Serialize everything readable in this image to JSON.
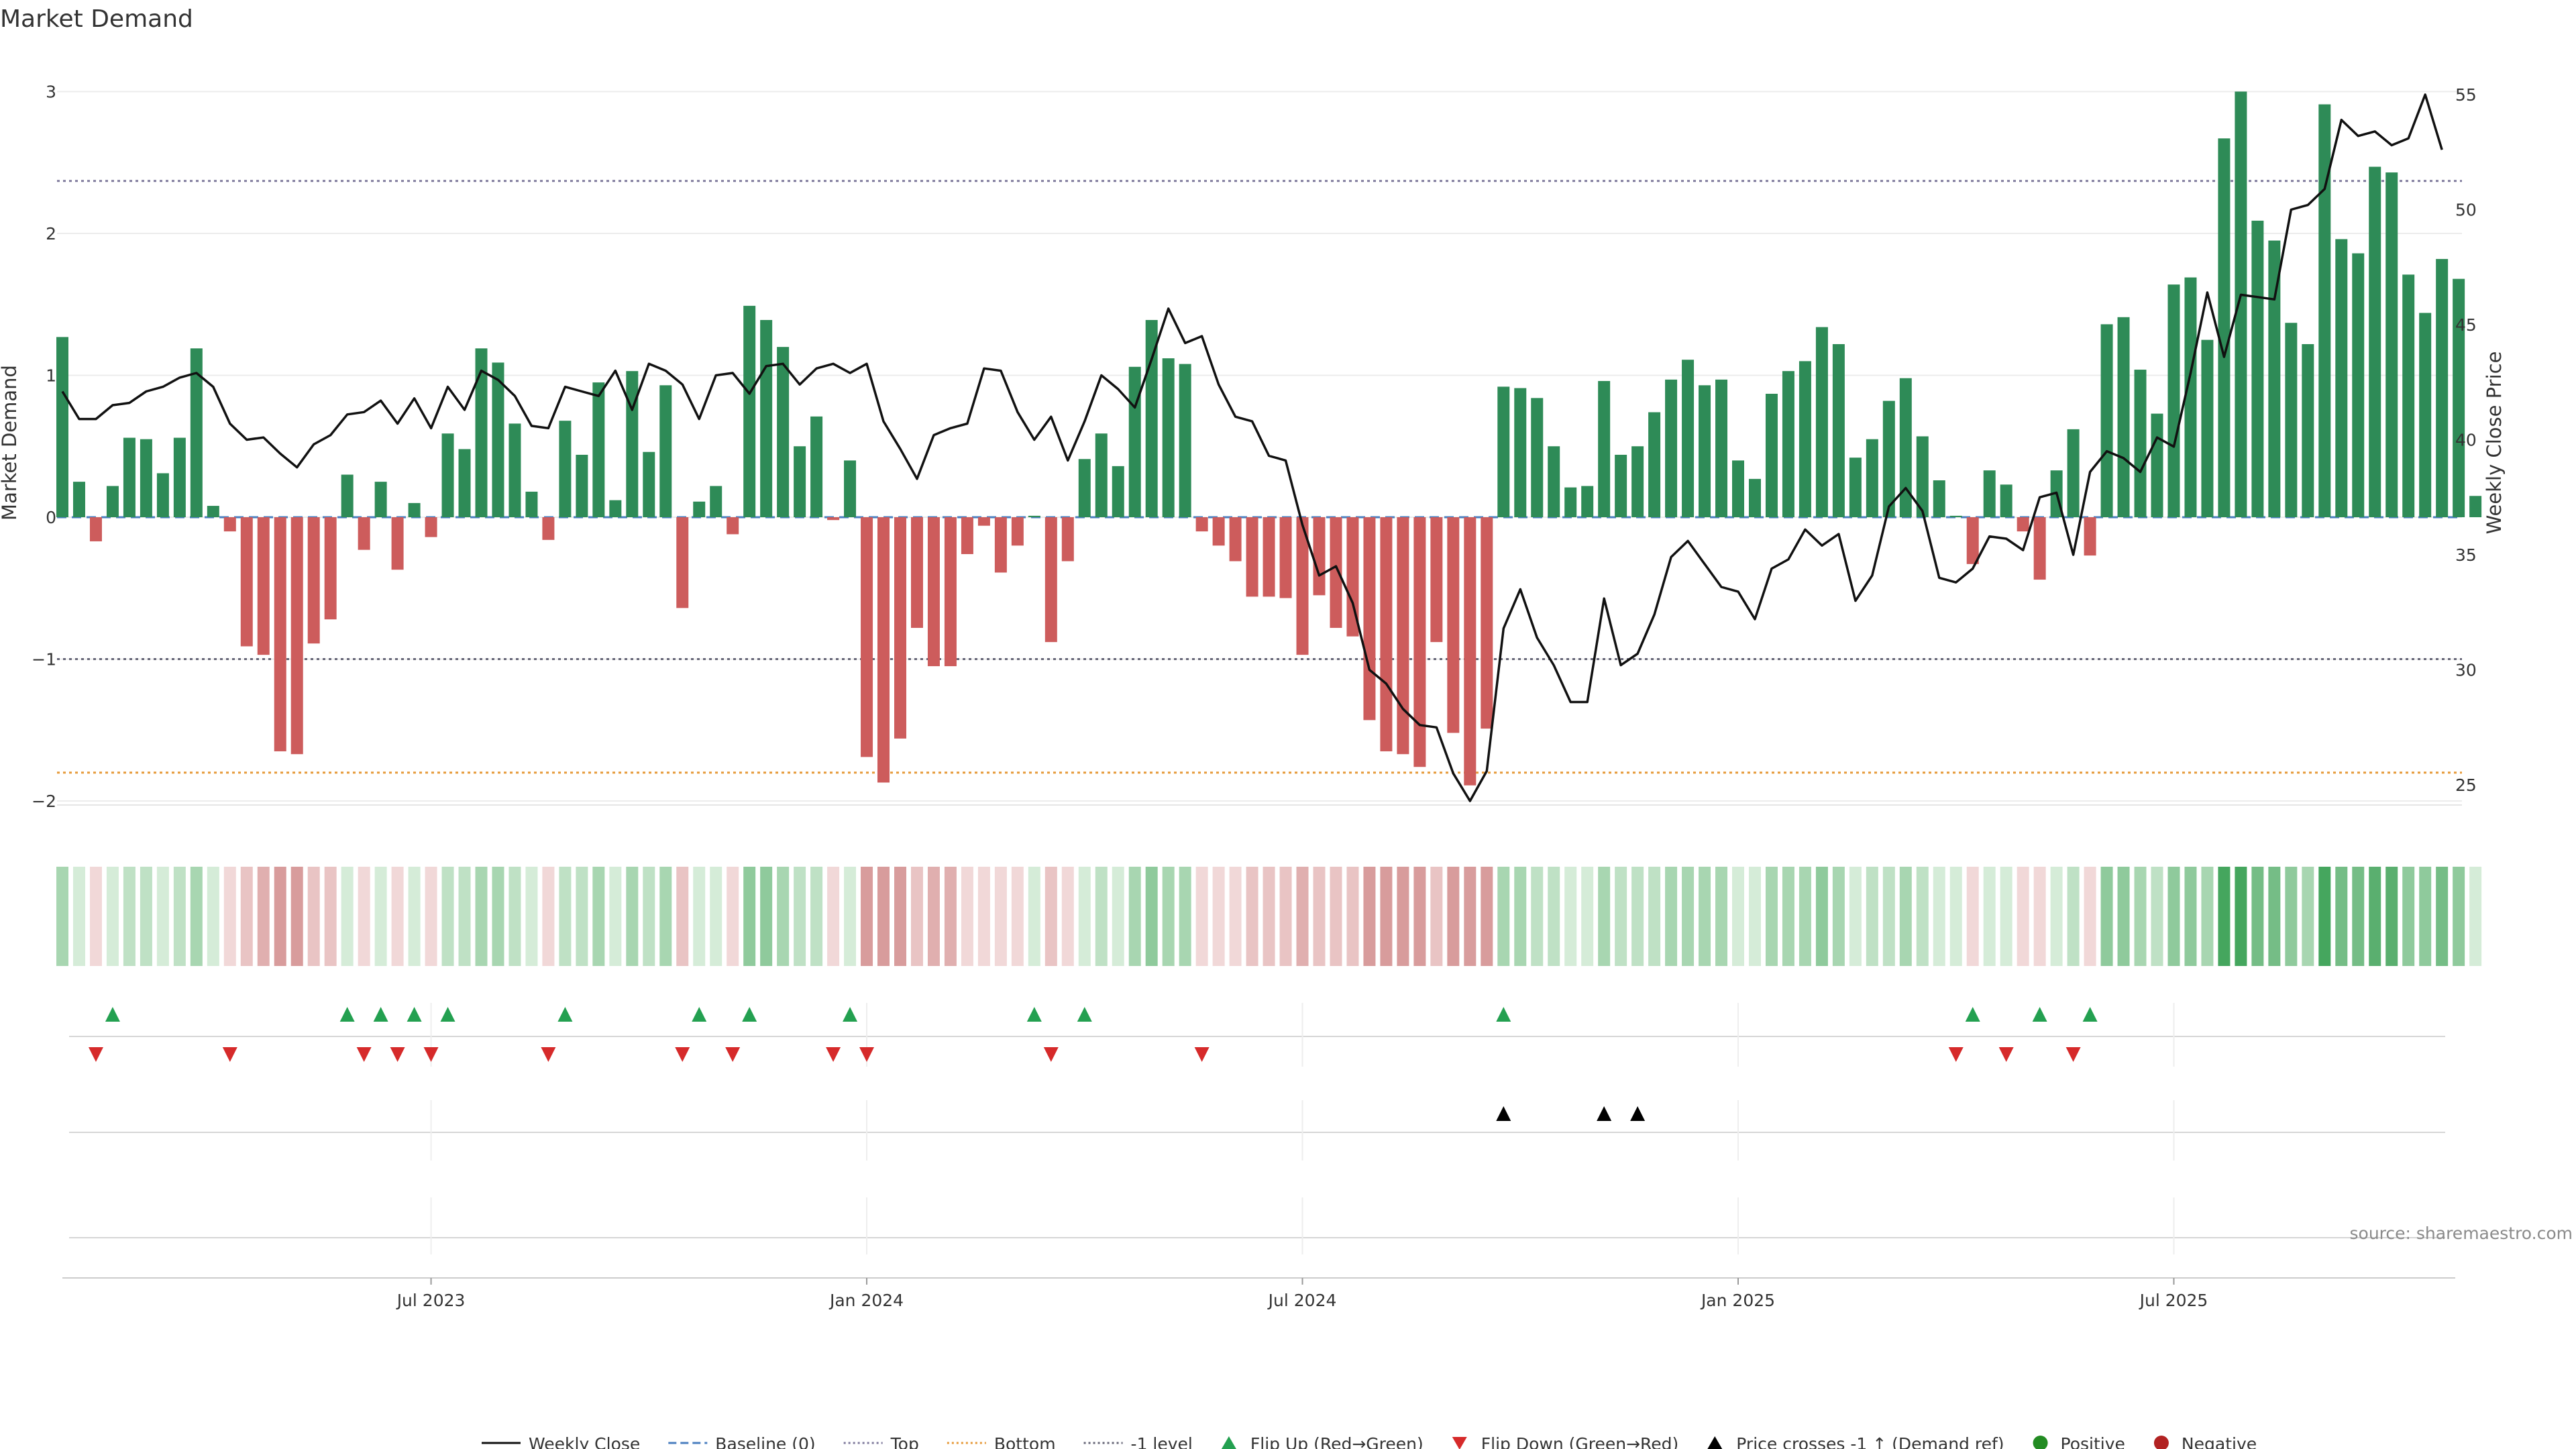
{
  "chart_data": {
    "type": "bar",
    "title": "Market Demand",
    "ylabel_left": "Market Demand",
    "ylabel_right": "Weekly Close Price",
    "source": "source: sharemaestro.com",
    "ylim_left": [
      -2.2,
      3.1
    ],
    "ylim_right": [
      23.5,
      56.5
    ],
    "left_ticks": [
      {
        "v": 3,
        "t": "3"
      },
      {
        "v": 2,
        "t": "2"
      },
      {
        "v": 1,
        "t": "1"
      },
      {
        "v": 0,
        "t": "0"
      },
      {
        "v": -1,
        "t": "−1"
      },
      {
        "v": -2,
        "t": "−2"
      }
    ],
    "right_ticks": [
      {
        "v": 55,
        "t": "55"
      },
      {
        "v": 50,
        "t": "50"
      },
      {
        "v": 45,
        "t": "45"
      },
      {
        "v": 40,
        "t": "40"
      },
      {
        "v": 35,
        "t": "35"
      },
      {
        "v": 30,
        "t": "30"
      },
      {
        "v": 25,
        "t": "25"
      }
    ],
    "x_ticks": [
      {
        "i": 22,
        "t": "Jul 2023"
      },
      {
        "i": 48,
        "t": "Jan 2024"
      },
      {
        "i": 74,
        "t": "Jul 2024"
      },
      {
        "i": 100,
        "t": "Jan 2025"
      },
      {
        "i": 126,
        "t": "Jul 2025"
      }
    ],
    "reference_lines": {
      "top": 2.37,
      "bottom": -1.8,
      "minus_one": -1,
      "baseline": 0
    },
    "demand": [
      1.27,
      0.25,
      -0.17,
      0.22,
      0.56,
      0.55,
      0.31,
      0.56,
      1.19,
      0.08,
      -0.1,
      -0.91,
      -0.97,
      -1.65,
      -1.67,
      -0.89,
      -0.72,
      0.3,
      -0.23,
      0.25,
      -0.37,
      0.1,
      -0.14,
      0.59,
      0.48,
      1.19,
      1.09,
      0.66,
      0.18,
      -0.16,
      0.68,
      0.44,
      0.95,
      0.12,
      1.03,
      0.46,
      0.93,
      -0.64,
      0.11,
      0.22,
      -0.12,
      1.49,
      1.39,
      1.2,
      0.5,
      0.71,
      -0.02,
      0.4,
      -1.69,
      -1.87,
      -1.56,
      -0.78,
      -1.05,
      -1.05,
      -0.26,
      -0.06,
      -0.39,
      -0.2,
      0.01,
      -0.88,
      -0.31,
      0.41,
      0.59,
      0.36,
      1.06,
      1.39,
      1.12,
      1.08,
      -0.1,
      -0.2,
      -0.31,
      -0.56,
      -0.56,
      -0.57,
      -0.97,
      -0.55,
      -0.78,
      -0.84,
      -1.43,
      -1.65,
      -1.67,
      -1.76,
      -0.88,
      -1.52,
      -1.89,
      -1.49,
      0.92,
      0.91,
      0.84,
      0.5,
      0.21,
      0.22,
      0.96,
      0.44,
      0.5,
      0.74,
      0.97,
      1.11,
      0.93,
      0.97,
      0.4,
      0.27,
      0.87,
      1.03,
      1.1,
      1.34,
      1.22,
      0.42,
      0.55,
      0.82,
      0.98,
      0.57,
      0.26,
      0.01,
      -0.33,
      0.33,
      0.23,
      -0.1,
      -0.44,
      0.33,
      0.62,
      -0.27,
      1.36,
      1.41,
      1.04,
      0.73,
      1.64,
      1.69,
      1.25,
      2.67,
      3.0,
      2.09,
      1.95,
      1.37,
      1.22,
      2.91,
      1.96,
      1.86,
      2.47,
      2.43,
      1.71,
      1.44,
      1.82,
      1.68,
      0.15
    ],
    "weekly_close": [
      42.1,
      40.9,
      40.9,
      41.5,
      41.6,
      42.1,
      42.3,
      42.7,
      42.9,
      42.3,
      40.7,
      40.0,
      40.1,
      39.4,
      38.8,
      39.8,
      40.2,
      41.1,
      41.2,
      41.7,
      40.7,
      41.8,
      40.5,
      42.3,
      41.3,
      43.0,
      42.6,
      41.9,
      40.6,
      40.5,
      42.3,
      42.1,
      41.9,
      43.0,
      41.3,
      43.3,
      43.0,
      42.4,
      40.9,
      42.8,
      42.9,
      42.0,
      43.2,
      43.3,
      42.4,
      43.1,
      43.3,
      42.9,
      43.3,
      40.8,
      39.6,
      38.3,
      40.2,
      40.5,
      40.7,
      43.1,
      43.0,
      41.2,
      40.0,
      41.0,
      39.1,
      40.8,
      42.8,
      42.2,
      41.4,
      43.5,
      45.7,
      44.2,
      44.5,
      42.4,
      41.0,
      40.8,
      39.3,
      39.1,
      36.3,
      34.1,
      34.5,
      32.9,
      30.0,
      29.4,
      28.3,
      27.6,
      27.5,
      25.5,
      24.3,
      25.6,
      31.8,
      33.5,
      31.4,
      30.2,
      28.6,
      28.6,
      33.1,
      30.2,
      30.7,
      32.4,
      34.9,
      35.6,
      34.6,
      33.6,
      33.4,
      32.2,
      34.4,
      34.8,
      36.1,
      35.4,
      35.9,
      33.0,
      34.1,
      37.1,
      37.9,
      36.9,
      34.0,
      33.8,
      34.4,
      35.8,
      35.7,
      35.2,
      37.5,
      37.7,
      35.0,
      38.6,
      39.5,
      39.2,
      38.6,
      40.1,
      39.7,
      42.9,
      46.4,
      43.6,
      46.3,
      46.2,
      46.1,
      50.0,
      50.2,
      50.9,
      53.9,
      53.2,
      53.4,
      52.8,
      53.1,
      55.0,
      52.6
    ],
    "flip_up_idx": [
      3,
      17,
      19,
      21,
      23,
      30,
      38,
      41,
      47,
      58,
      61,
      86,
      114,
      118,
      121
    ],
    "flip_down_idx": [
      2,
      10,
      18,
      20,
      22,
      29,
      37,
      40,
      46,
      48,
      59,
      68,
      113,
      116,
      120
    ],
    "price_cross_idx": [
      86,
      92,
      94
    ],
    "strength_colors": {
      "pos": [
        "#d5ecd8",
        "#bfe1c5",
        "#a8d6b1",
        "#8fca9c",
        "#75bd86",
        "#5aaf6f",
        "#45a65e"
      ],
      "neg": [
        "#f1d8d8",
        "#e9c4c4",
        "#e0afaf",
        "#d89c9c"
      ]
    },
    "colors": {
      "positive": "#2e8b57",
      "negative": "#cd5c5c",
      "close_line": "#111111",
      "top_line": "#7f7a9c",
      "bottom_line": "#e69a3a",
      "minus_one_line": "#666677",
      "baseline_line": "#4a7fbf",
      "flip_up": "#23a050",
      "flip_down": "#d62a2a",
      "cross": "#000000",
      "dot_positive": "#228b22",
      "dot_negative": "#b22222"
    },
    "legend": [
      {
        "label": "Weekly Close",
        "kind": "line",
        "color": "#111111",
        "dash": ""
      },
      {
        "label": "Baseline (0)",
        "kind": "line",
        "color": "#4a7fbf",
        "dash": "12 6"
      },
      {
        "label": "Top",
        "kind": "line",
        "color": "#7f7a9c",
        "dash": "3 4"
      },
      {
        "label": "Bottom",
        "kind": "line",
        "color": "#e69a3a",
        "dash": "3 4"
      },
      {
        "label": "-1 level",
        "kind": "line",
        "color": "#666677",
        "dash": "3 4"
      },
      {
        "label": "Flip Up (Red→Green)",
        "kind": "tri-up",
        "color": "#23a050"
      },
      {
        "label": "Flip Down (Green→Red)",
        "kind": "tri-down",
        "color": "#d62a2a"
      },
      {
        "label": "Price crosses -1 ↑ (Demand ref)",
        "kind": "tri-up",
        "color": "#000000"
      },
      {
        "label": "Positive",
        "kind": "dot",
        "color": "#228b22"
      },
      {
        "label": "Negative",
        "kind": "dot",
        "color": "#b22222"
      }
    ]
  }
}
